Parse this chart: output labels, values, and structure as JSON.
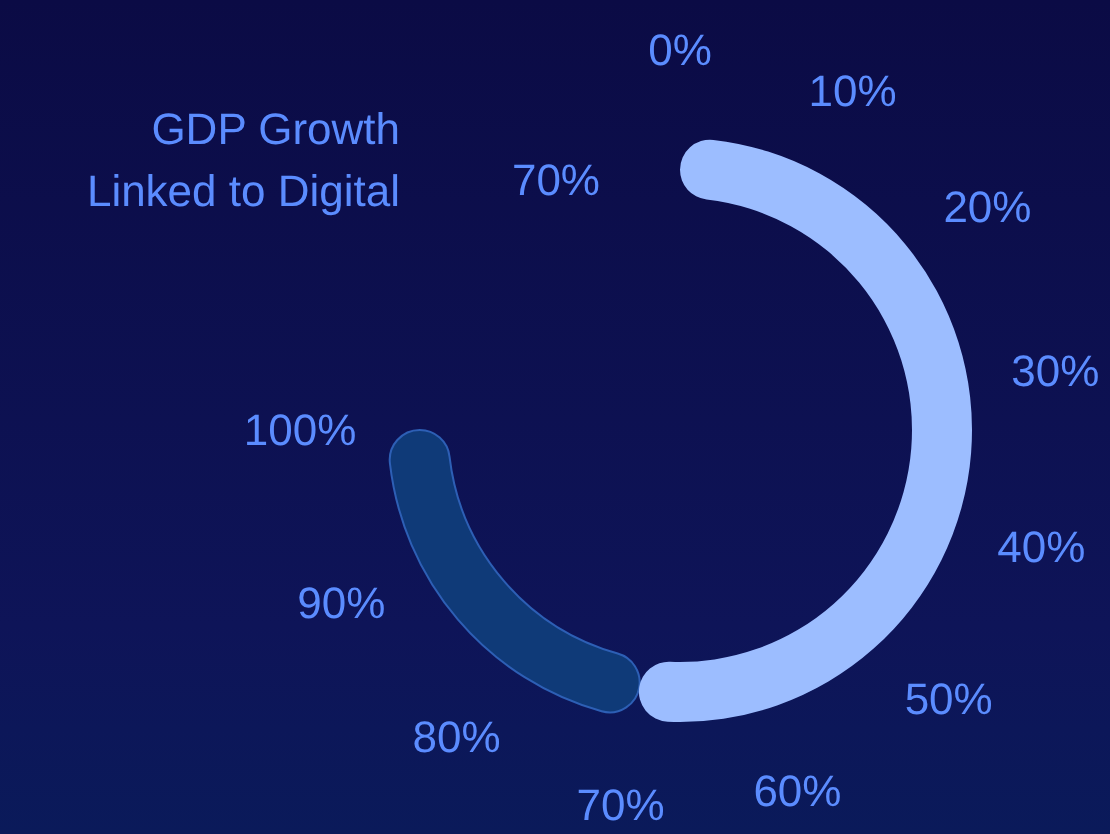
{
  "chart_data": {
    "type": "donut",
    "title": "GDP Growth\nLinked to Digital",
    "categories": [
      null,
      null
    ],
    "values": [
      70,
      30
    ],
    "colors": [
      "#9cbdff",
      "#0f3a78"
    ],
    "annotations": [
      "70%",
      "0%",
      "10%",
      "20%",
      "30%",
      "40%",
      "50%",
      "60%",
      "70%",
      "80%",
      "90%",
      "100%"
    ]
  }
}
